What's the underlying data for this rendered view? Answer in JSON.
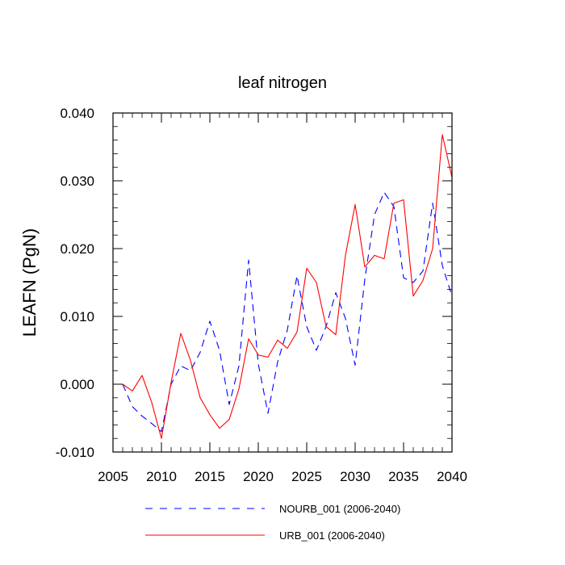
{
  "chart_data": {
    "type": "line",
    "title": "leaf nitrogen",
    "xlabel": "",
    "ylabel": "LEAFN  (PgN)",
    "xlim": [
      2005,
      2040
    ],
    "ylim": [
      -0.01,
      0.04
    ],
    "x_ticks": [
      2005,
      2010,
      2015,
      2020,
      2025,
      2030,
      2035,
      2040
    ],
    "x_tick_labels": [
      "2005",
      "2010",
      "2015",
      "2020",
      "2025",
      "2030",
      "2035",
      "2040"
    ],
    "y_ticks": [
      -0.01,
      0.0,
      0.01,
      0.02,
      0.03,
      0.04
    ],
    "y_tick_labels": [
      "-0.010",
      "0.000",
      "0.010",
      "0.020",
      "0.030",
      "0.040"
    ],
    "grid": false,
    "legend_position": "bottom",
    "x": [
      2006,
      2007,
      2008,
      2009,
      2010,
      2011,
      2012,
      2013,
      2014,
      2015,
      2016,
      2017,
      2018,
      2019,
      2020,
      2021,
      2022,
      2023,
      2024,
      2025,
      2026,
      2027,
      2028,
      2029,
      2030,
      2031,
      2032,
      2033,
      2034,
      2035,
      2036,
      2037,
      2038,
      2039,
      2040
    ],
    "series": [
      {
        "name": "NOURB_001 (2006-2040)",
        "color": "#0000ff",
        "dash": "dashed",
        "values": [
          0.0,
          -0.0033,
          -0.0047,
          -0.0058,
          -0.007,
          0.0,
          0.0027,
          0.002,
          0.0047,
          0.0093,
          0.005,
          -0.003,
          0.0027,
          0.0183,
          0.003,
          -0.0043,
          0.0033,
          0.008,
          0.016,
          0.0085,
          0.005,
          0.0085,
          0.0135,
          0.0097,
          0.0028,
          0.0155,
          0.025,
          0.0283,
          0.0262,
          0.0157,
          0.015,
          0.0167,
          0.0267,
          0.0175,
          0.013
        ]
      },
      {
        "name": "URB_001 (2006-2040)",
        "color": "#ff0000",
        "dash": "solid",
        "values": [
          0.0,
          -0.001,
          0.0013,
          -0.0027,
          -0.008,
          0.0003,
          0.0075,
          0.0035,
          -0.002,
          -0.0045,
          -0.0065,
          -0.0052,
          -0.0007,
          0.0067,
          0.0043,
          0.004,
          0.0065,
          0.0053,
          0.0077,
          0.0171,
          0.015,
          0.0085,
          0.0073,
          0.019,
          0.0265,
          0.0173,
          0.019,
          0.0185,
          0.0267,
          0.0272,
          0.013,
          0.0153,
          0.02,
          0.0368,
          0.0305
        ]
      }
    ]
  }
}
